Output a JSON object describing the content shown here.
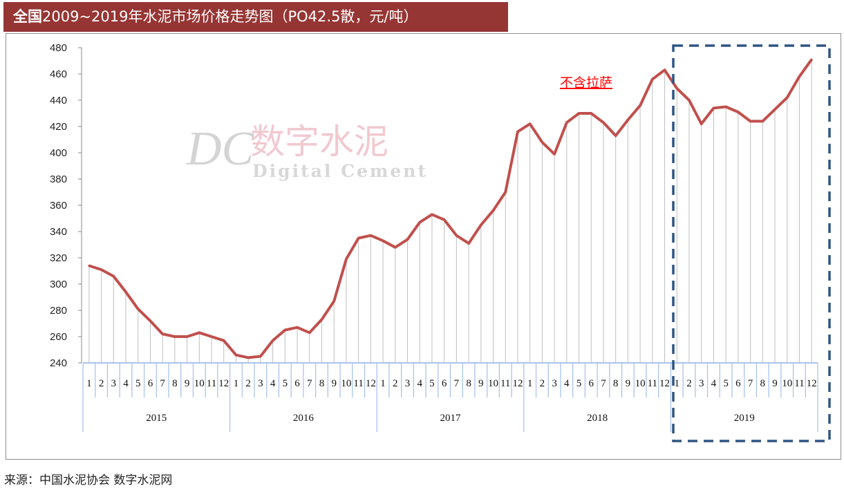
{
  "title": {
    "bold": "全国",
    "rest": "2009~2019年水泥市场价格走势图（PO42.5散，元/吨）"
  },
  "source": "来源：中国水泥协会  数字水泥网",
  "watermark": {
    "logo": "DC",
    "cn": "数字水泥",
    "en": "Digital Cement"
  },
  "colors": {
    "title_bg": "#963634",
    "line": "#c0504d",
    "highlight_box": "#2f5583",
    "annotation": "#ff0000"
  },
  "chart_data": {
    "type": "line",
    "title": "全国2009~2019年水泥市场价格走势图（PO42.5散，元/吨）",
    "ylim": [
      240,
      480
    ],
    "yticks": [
      240,
      260,
      280,
      300,
      320,
      340,
      360,
      380,
      400,
      420,
      440,
      460,
      480
    ],
    "years": [
      "2015",
      "2016",
      "2017",
      "2018",
      "2019"
    ],
    "months": [
      "1",
      "2",
      "3",
      "4",
      "5",
      "6",
      "7",
      "8",
      "9",
      "10",
      "11",
      "12"
    ],
    "values": [
      314,
      311,
      306,
      294,
      281,
      272,
      262,
      260,
      260,
      263,
      260,
      257,
      246,
      244,
      245,
      257,
      265,
      267,
      263,
      273,
      287,
      319,
      335,
      337,
      333,
      328,
      334,
      347,
      353,
      349,
      337,
      331,
      345,
      356,
      370,
      416,
      422,
      408,
      399,
      423,
      430,
      430,
      423,
      413,
      425,
      436,
      456,
      463,
      449,
      440,
      422,
      434,
      435,
      431,
      424,
      424,
      433,
      442,
      458,
      471
    ],
    "annotation": "不含拉萨",
    "highlight": "2019",
    "grid": false,
    "drop_lines": true
  }
}
